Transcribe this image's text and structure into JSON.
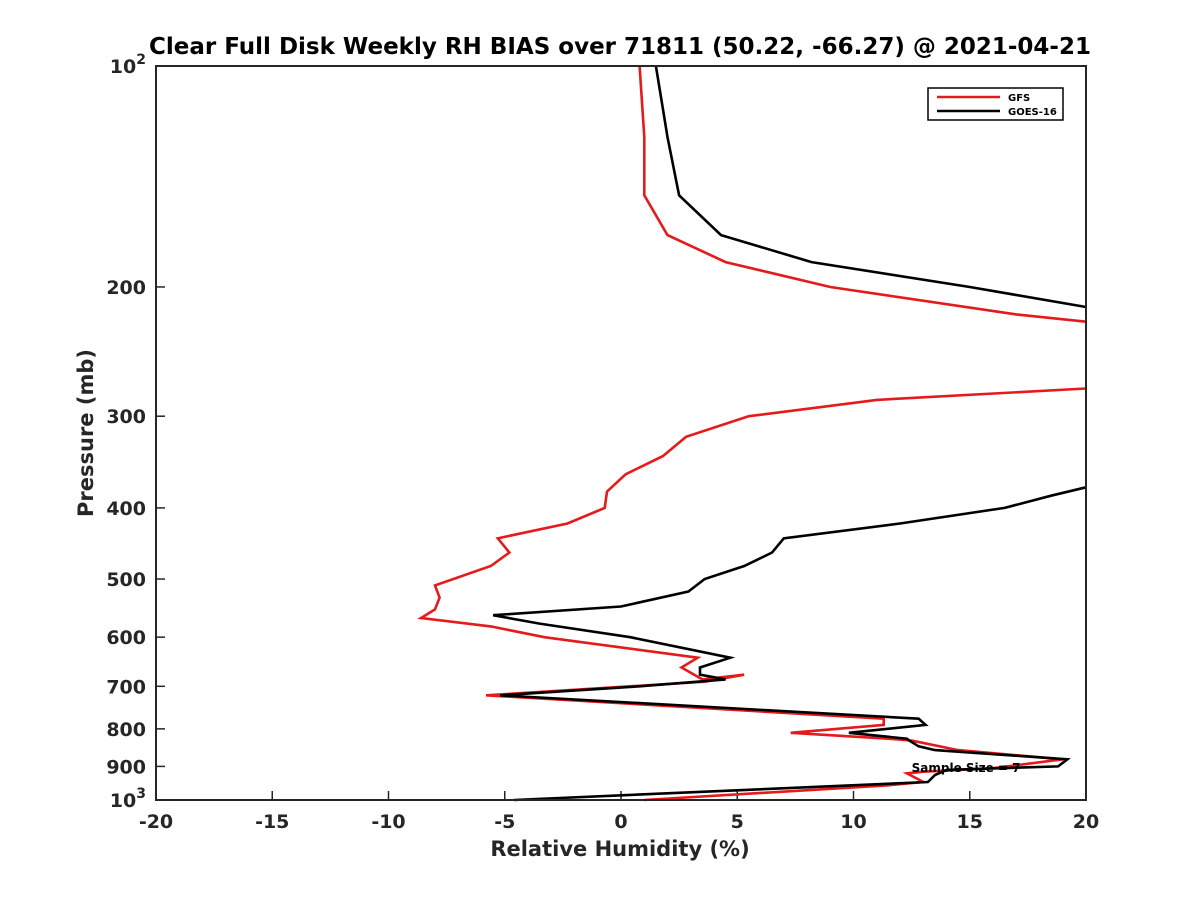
{
  "chart_data": {
    "type": "line",
    "title": "Clear Full Disk Weekly RH BIAS over 71811 (50.22, -66.27) @ 2021-04-21",
    "xlabel": "Relative Humidity (%)",
    "ylabel": "Pressure (mb)",
    "xlim": [
      -20,
      20
    ],
    "ylim": [
      100,
      1000
    ],
    "yscale": "log",
    "y_reversed": true,
    "x_ticks": [
      "-20",
      "-15",
      "-10",
      "-5",
      "0",
      "5",
      "10",
      "15",
      "20"
    ],
    "y_ticks": [
      {
        "value": 100,
        "label": "10",
        "exp": "2"
      },
      {
        "value": 200,
        "label": "200"
      },
      {
        "value": 300,
        "label": "300"
      },
      {
        "value": 400,
        "label": "400"
      },
      {
        "value": 500,
        "label": "500"
      },
      {
        "value": 600,
        "label": "600"
      },
      {
        "value": 700,
        "label": "700"
      },
      {
        "value": 800,
        "label": "800"
      },
      {
        "value": 900,
        "label": "900"
      },
      {
        "value": 1000,
        "label": "10",
        "exp": "3"
      }
    ],
    "grid": false,
    "legend_position": "top-right",
    "annotation": "Sample Size = 7",
    "series": [
      {
        "name": "GFS",
        "color": "#e41a1c",
        "segments": [
          [
            [
              0.8,
              100
            ],
            [
              1.0,
              125
            ],
            [
              1.0,
              150
            ],
            [
              2.0,
              170
            ],
            [
              4.5,
              185
            ],
            [
              9.0,
              200
            ],
            [
              17.0,
              218
            ],
            [
              20.0,
              223
            ]
          ],
          [
            [
              20.0,
              275
            ],
            [
              11.0,
              285
            ],
            [
              5.5,
              300
            ],
            [
              2.8,
              320
            ],
            [
              1.8,
              340
            ],
            [
              0.2,
              360
            ],
            [
              -0.6,
              380
            ],
            [
              -0.7,
              400
            ],
            [
              -2.3,
              420
            ],
            [
              -5.3,
              440
            ],
            [
              -4.8,
              460
            ],
            [
              -5.6,
              480
            ],
            [
              -8.0,
              510
            ],
            [
              -7.8,
              530
            ],
            [
              -8.0,
              550
            ],
            [
              -8.6,
              565
            ],
            [
              -5.6,
              580
            ],
            [
              -3.3,
              600
            ],
            [
              3.3,
              640
            ],
            [
              2.6,
              660
            ],
            [
              3.5,
              685
            ],
            [
              5.3,
              675
            ],
            [
              3.6,
              690
            ],
            [
              -5.8,
              720
            ],
            [
              11.3,
              775
            ],
            [
              11.3,
              790
            ],
            [
              7.3,
              810
            ],
            [
              11.5,
              825
            ],
            [
              12.5,
              830
            ],
            [
              14.5,
              855
            ],
            [
              19.0,
              880
            ],
            [
              16.0,
              905
            ],
            [
              13.0,
              915
            ],
            [
              12.3,
              920
            ],
            [
              13.0,
              945
            ],
            [
              11.5,
              955
            ],
            [
              1.0,
              1000
            ]
          ]
        ]
      },
      {
        "name": "GOES-16",
        "color": "#000000",
        "segments": [
          [
            [
              1.5,
              100
            ],
            [
              2.0,
              125
            ],
            [
              2.5,
              150
            ],
            [
              4.3,
              170
            ],
            [
              8.2,
              185
            ],
            [
              15.0,
              200
            ],
            [
              20.0,
              213
            ]
          ],
          [
            [
              20.0,
              375
            ],
            [
              18.5,
              385
            ],
            [
              16.5,
              400
            ],
            [
              12.0,
              420
            ],
            [
              7.0,
              440
            ],
            [
              6.5,
              460
            ],
            [
              5.3,
              480
            ],
            [
              3.6,
              500
            ],
            [
              2.9,
              520
            ],
            [
              0.0,
              545
            ],
            [
              -5.5,
              560
            ],
            [
              -3.5,
              575
            ],
            [
              0.4,
              600
            ],
            [
              4.7,
              640
            ],
            [
              3.4,
              660
            ],
            [
              3.4,
              675
            ],
            [
              4.5,
              685
            ],
            [
              0.8,
              700
            ],
            [
              -5.2,
              720
            ],
            [
              12.8,
              775
            ],
            [
              13.1,
              790
            ],
            [
              9.8,
              810
            ],
            [
              12.3,
              825
            ],
            [
              12.4,
              830
            ],
            [
              12.8,
              845
            ],
            [
              13.5,
              855
            ],
            [
              19.2,
              880
            ],
            [
              18.8,
              900
            ],
            [
              14.0,
              910
            ],
            [
              13.5,
              925
            ],
            [
              13.2,
              945
            ],
            [
              -4.6,
              1000
            ]
          ]
        ]
      }
    ]
  }
}
